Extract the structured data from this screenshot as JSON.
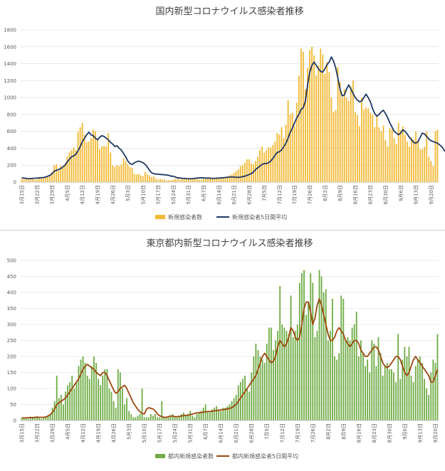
{
  "chart_data": [
    {
      "type": "bar",
      "title": "国内新型コロナウイルス感染者推移",
      "ylim": [
        0,
        1800
      ],
      "yticks": [
        "0",
        "200",
        "400",
        "600",
        "800",
        "1000",
        "1200",
        "1400",
        "1600",
        "1800"
      ],
      "grid": true,
      "legend_position": "bottom",
      "x_start": "3月15日",
      "xticks": [
        "3月15日",
        "3月22日",
        "3月29日",
        "4月5日",
        "4月12日",
        "4月19日",
        "4月26日",
        "5月3日",
        "5月10日",
        "5月17日",
        "5月24日",
        "5月31日",
        "6月7日",
        "6月14日",
        "6月21日",
        "6月28日",
        "7月5日",
        "7月12日",
        "7月19日",
        "7月26日",
        "8月2日",
        "8月9日",
        "8月16日",
        "8月23日",
        "8月30日",
        "9月6日",
        "9月13日",
        "9月20日"
      ],
      "series": [
        {
          "name": "新規感染者数",
          "type": "bar",
          "color": "#f2b934",
          "values": [
            40,
            35,
            45,
            30,
            50,
            45,
            30,
            35,
            60,
            45,
            50,
            65,
            70,
            80,
            120,
            200,
            210,
            140,
            195,
            190,
            220,
            300,
            350,
            380,
            410,
            380,
            600,
            650,
            700,
            560,
            470,
            480,
            520,
            620,
            600,
            500,
            390,
            420,
            430,
            420,
            580,
            350,
            200,
            180,
            200,
            190,
            210,
            280,
            250,
            210,
            180,
            170,
            100,
            90,
            100,
            80,
            70,
            120,
            90,
            80,
            60,
            70,
            40,
            30,
            40,
            30,
            30,
            20,
            25,
            20,
            30,
            40,
            40,
            30,
            50,
            40,
            40,
            40,
            35,
            50,
            40,
            40,
            30,
            30,
            40,
            50,
            50,
            60,
            50,
            40,
            60,
            50,
            55,
            60,
            60,
            70,
            80,
            90,
            110,
            130,
            150,
            190,
            200,
            230,
            270,
            270,
            220,
            210,
            250,
            300,
            380,
            420,
            350,
            380,
            410,
            410,
            440,
            480,
            580,
            560,
            650,
            520,
            680,
            970,
            800,
            820,
            660,
            940,
            1260,
            1580,
            1540,
            1100,
            1350,
            1560,
            1600,
            1500,
            1260,
            1380,
            1580,
            1510,
            1280,
            1420,
            1300,
            1000,
            830,
            850,
            1360,
            1180,
            1000,
            1100,
            1000,
            960,
            1130,
            1200,
            830,
            790,
            660,
            1000,
            860,
            880,
            870,
            820,
            800,
            650,
            790,
            650,
            600,
            670,
            500,
            420,
            640,
            620,
            520,
            450,
            700,
            610,
            660,
            560,
            480,
            420,
            530,
            500,
            600,
            500,
            390,
            390,
            420,
            600,
            300,
            250,
            190,
            600,
            620
          ]
        },
        {
          "name": "新規感染者5日間平均",
          "type": "line",
          "color": "#1f3864",
          "values": [
            50,
            48,
            45,
            40,
            42,
            44,
            46,
            48,
            50,
            52,
            55,
            60,
            70,
            80,
            100,
            130,
            140,
            150,
            160,
            180,
            200,
            240,
            270,
            300,
            310,
            330,
            370,
            420,
            480,
            520,
            560,
            590,
            560,
            550,
            520,
            500,
            530,
            550,
            540,
            520,
            500,
            470,
            450,
            420,
            430,
            400,
            380,
            340,
            300,
            250,
            220,
            210,
            230,
            240,
            250,
            240,
            230,
            210,
            180,
            140,
            110,
            100,
            95,
            95,
            90,
            90,
            85,
            85,
            80,
            70,
            70,
            60,
            50,
            50,
            45,
            45,
            42,
            40,
            40,
            42,
            45,
            48,
            50,
            52,
            50,
            48,
            48,
            46,
            44,
            45,
            46,
            48,
            50,
            52,
            55,
            58,
            60,
            62,
            60,
            58,
            56,
            60,
            65,
            70,
            80,
            90,
            100,
            120,
            150,
            170,
            190,
            210,
            220,
            220,
            230,
            250,
            280,
            320,
            350,
            360,
            380,
            420,
            460,
            520,
            590,
            640,
            700,
            760,
            800,
            860,
            880,
            960,
            1150,
            1300,
            1380,
            1420,
            1380,
            1340,
            1310,
            1300,
            1340,
            1390,
            1420,
            1480,
            1430,
            1350,
            1230,
            1100,
            1020,
            1030,
            1100,
            1150,
            1100,
            1050,
            1000,
            970,
            950,
            960,
            1000,
            1040,
            1000,
            950,
            870,
            810,
            780,
            800,
            830,
            850,
            810,
            760,
            700,
            650,
            600,
            580,
            560,
            580,
            620,
            600,
            570,
            530,
            500,
            470,
            460,
            480,
            530,
            580,
            570,
            540,
            510,
            490,
            480,
            470,
            460,
            440,
            420,
            380,
            350,
            360,
            400,
            440,
            460
          ]
        }
      ]
    },
    {
      "type": "bar",
      "title": "東京都内新型コロナウイルス感染者推移",
      "ylim": [
        0,
        500
      ],
      "yticks": [
        "0",
        "50",
        "100",
        "150",
        "200",
        "250",
        "300",
        "350",
        "400",
        "450",
        "500"
      ],
      "grid": true,
      "legend_position": "bottom",
      "x_start": "3月15日",
      "xticks": [
        "3月15日",
        "3月22日",
        "3月29日",
        "4月5日",
        "4月12日",
        "4月19日",
        "4月26日",
        "5月3日",
        "5月10日",
        "5月17日",
        "5月24日",
        "5月31日",
        "6月7日",
        "6月14日",
        "6月21日",
        "6月28日",
        "7月5日",
        "7月12日",
        "7月19日",
        "7月26日",
        "8月2日",
        "8月9日",
        "8月16日",
        "8月23日",
        "8月30日",
        "9月6日",
        "9月13日",
        "9月20日"
      ],
      "series": [
        {
          "name": "都内新規感染者数",
          "type": "bar",
          "color": "#70ad47",
          "values": [
            8,
            6,
            10,
            5,
            12,
            10,
            8,
            14,
            10,
            6,
            8,
            12,
            15,
            20,
            40,
            60,
            140,
            70,
            80,
            50,
            90,
            110,
            120,
            140,
            100,
            120,
            170,
            190,
            200,
            180,
            140,
            130,
            170,
            200,
            180,
            130,
            110,
            140,
            160,
            160,
            100,
            90,
            60,
            40,
            160,
            150,
            100,
            50,
            70,
            30,
            20,
            10,
            10,
            15,
            20,
            100,
            10,
            10,
            10,
            20,
            15,
            20,
            10,
            10,
            60,
            10,
            8,
            10,
            15,
            20,
            10,
            10,
            14,
            20,
            25,
            15,
            20,
            30,
            15,
            10,
            20,
            25,
            30,
            40,
            50,
            30,
            30,
            35,
            40,
            45,
            35,
            30,
            40,
            40,
            45,
            50,
            60,
            70,
            80,
            110,
            120,
            130,
            140,
            100,
            90,
            150,
            200,
            240,
            220,
            200,
            190,
            180,
            240,
            290,
            290,
            220,
            250,
            280,
            420,
            300,
            290,
            280,
            270,
            390,
            260,
            280,
            300,
            430,
            460,
            470,
            330,
            370,
            460,
            430,
            260,
            280,
            470,
            450,
            400,
            410,
            250,
            280,
            380,
            200,
            190,
            210,
            390,
            380,
            250,
            260,
            250,
            290,
            300,
            340,
            200,
            250,
            210,
            170,
            190,
            150,
            250,
            240,
            170,
            260,
            210,
            140,
            170,
            180,
            160,
            160,
            150,
            120,
            270,
            130,
            190,
            230,
            200,
            230,
            140,
            120,
            170,
            190,
            200,
            180,
            130,
            100,
            80,
            150,
            190,
            180,
            270
          ]
        },
        {
          "name": "都内新規感染者5日間平均",
          "type": "line",
          "color": "#9e480e",
          "values": [
            8,
            8,
            8,
            9,
            9,
            9,
            10,
            10,
            10,
            10,
            10,
            11,
            14,
            18,
            25,
            35,
            50,
            55,
            60,
            65,
            70,
            80,
            90,
            100,
            110,
            120,
            130,
            145,
            160,
            170,
            175,
            170,
            165,
            160,
            150,
            145,
            140,
            150,
            150,
            140,
            125,
            110,
            95,
            85,
            90,
            100,
            105,
            110,
            100,
            85,
            70,
            55,
            45,
            35,
            28,
            22,
            20,
            35,
            40,
            38,
            36,
            30,
            20,
            15,
            12,
            10,
            10,
            12,
            14,
            14,
            12,
            12,
            13,
            14,
            15,
            16,
            17,
            18,
            20,
            22,
            24,
            24,
            25,
            26,
            27,
            28,
            28,
            29,
            30,
            31,
            32,
            33,
            34,
            35,
            36,
            38,
            40,
            45,
            50,
            60,
            70,
            80,
            90,
            100,
            110,
            120,
            130,
            140,
            160,
            180,
            200,
            210,
            200,
            190,
            180,
            185,
            200,
            230,
            250,
            240,
            230,
            240,
            260,
            290,
            280,
            260,
            250,
            260,
            300,
            350,
            370,
            370,
            340,
            300,
            320,
            360,
            380,
            360,
            330,
            300,
            270,
            250,
            250,
            260,
            280,
            290,
            280,
            270,
            250,
            240,
            230,
            240,
            250,
            250,
            240,
            220,
            210,
            200,
            200,
            210,
            220,
            230,
            230,
            220,
            200,
            180,
            170,
            165,
            170,
            180,
            190,
            200,
            200,
            190,
            170,
            150,
            140,
            150,
            170,
            190,
            200,
            190,
            180,
            170,
            160,
            150,
            140,
            120,
            120,
            140,
            160
          ]
        }
      ]
    }
  ]
}
